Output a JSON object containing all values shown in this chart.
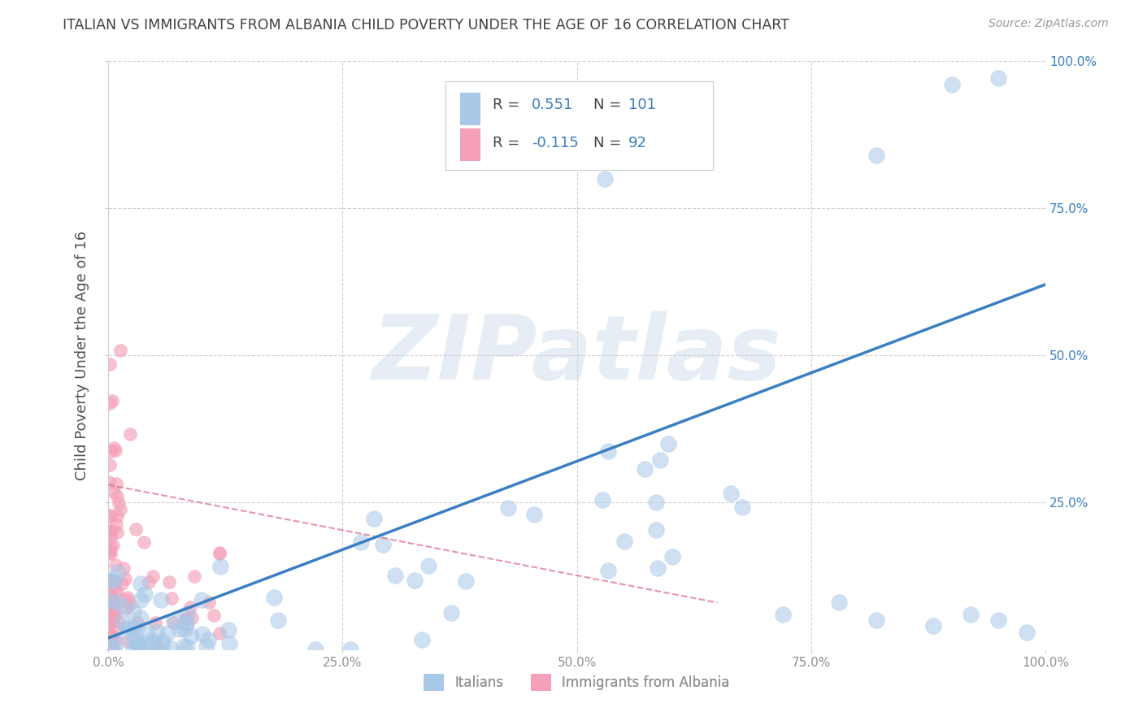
{
  "title": "ITALIAN VS IMMIGRANTS FROM ALBANIA CHILD POVERTY UNDER THE AGE OF 16 CORRELATION CHART",
  "source": "Source: ZipAtlas.com",
  "ylabel": "Child Poverty Under the Age of 16",
  "xlabel": "",
  "watermark": "ZIPatlas",
  "italians_R": 0.551,
  "italians_N": 101,
  "albania_R": -0.115,
  "albania_N": 92,
  "blue_scatter_color": "#a8c8e8",
  "pink_scatter_color": "#f4a0b8",
  "trend_blue": "#3a7fc1",
  "trend_pink": "#e07090",
  "grid_color": "#d0d0d0",
  "background_color": "#ffffff",
  "title_color": "#404040",
  "axis_label_color": "#505050",
  "tick_label_color": "#909090",
  "right_tick_color": "#3a7fc1",
  "xlim": [
    0,
    1
  ],
  "ylim": [
    0,
    1
  ],
  "xticks": [
    0,
    0.25,
    0.5,
    0.75,
    1.0
  ],
  "yticks": [
    0,
    0.25,
    0.5,
    0.75,
    1.0
  ],
  "xticklabels": [
    "0.0%",
    "25.0%",
    "50.0%",
    "75.0%",
    "100.0%"
  ],
  "right_yticklabels": [
    "",
    "25.0%",
    "50.0%",
    "75.0%",
    "100.0%"
  ]
}
